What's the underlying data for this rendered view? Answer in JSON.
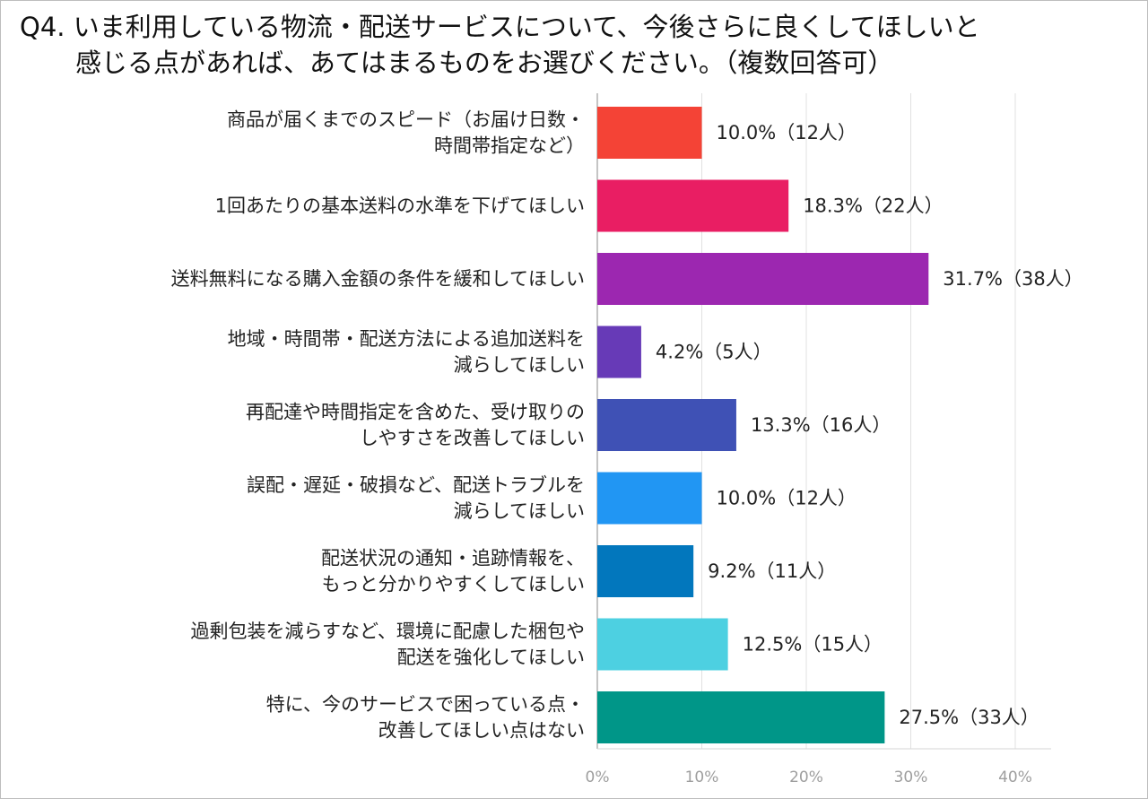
{
  "title": {
    "line1": "Q4. いま利用している物流・配送サービスについて、今後さらに良くしてほしいと",
    "line2": "感じる点があれば、あてはまるものをお選びください。（複数回答可）"
  },
  "chart_data": {
    "type": "bar",
    "orientation": "horizontal",
    "categories": [
      [
        "商品が届くまでのスピード（お届け日数・",
        "時間帯指定など）"
      ],
      [
        "1回あたりの基本送料の水準を下げてほしい"
      ],
      [
        "送料無料になる購入金額の条件を緩和してほしい"
      ],
      [
        "地域・時間帯・配送方法による追加送料を",
        "減らしてほしい"
      ],
      [
        "再配達や時間指定を含めた、受け取りの",
        "しやすさを改善してほしい"
      ],
      [
        "誤配・遅延・破損など、配送トラブルを",
        "減らしてほしい"
      ],
      [
        "配送状況の通知・追跡情報を、",
        "もっと分かりやすくしてほしい"
      ],
      [
        "過剰包装を減らすなど、環境に配慮した梱包や",
        "配送を強化してほしい"
      ],
      [
        "特に、今のサービスで困っている点・",
        "改善してほしい点はない"
      ]
    ],
    "values": [
      10.0,
      18.3,
      31.7,
      4.2,
      13.3,
      10.0,
      9.2,
      12.5,
      27.5
    ],
    "data_labels": [
      "10.0%（12人）",
      "18.3%（22人）",
      "31.7%（38人）",
      "4.2%（5人）",
      "13.3%（16人）",
      "10.0%（12人）",
      "9.2%（11人）",
      "12.5%（15人）",
      "27.5%（33人）"
    ],
    "colors": [
      "#f44336",
      "#e91e63",
      "#9c27b0",
      "#673ab7",
      "#3f51b5",
      "#2196f3",
      "#0277bd",
      "#4dd0e1",
      "#009688"
    ],
    "xlim": [
      0,
      40
    ],
    "xticks": [
      "0%",
      "10%",
      "20%",
      "30%",
      "40%"
    ],
    "grid": true,
    "xlabel": "",
    "ylabel": ""
  }
}
